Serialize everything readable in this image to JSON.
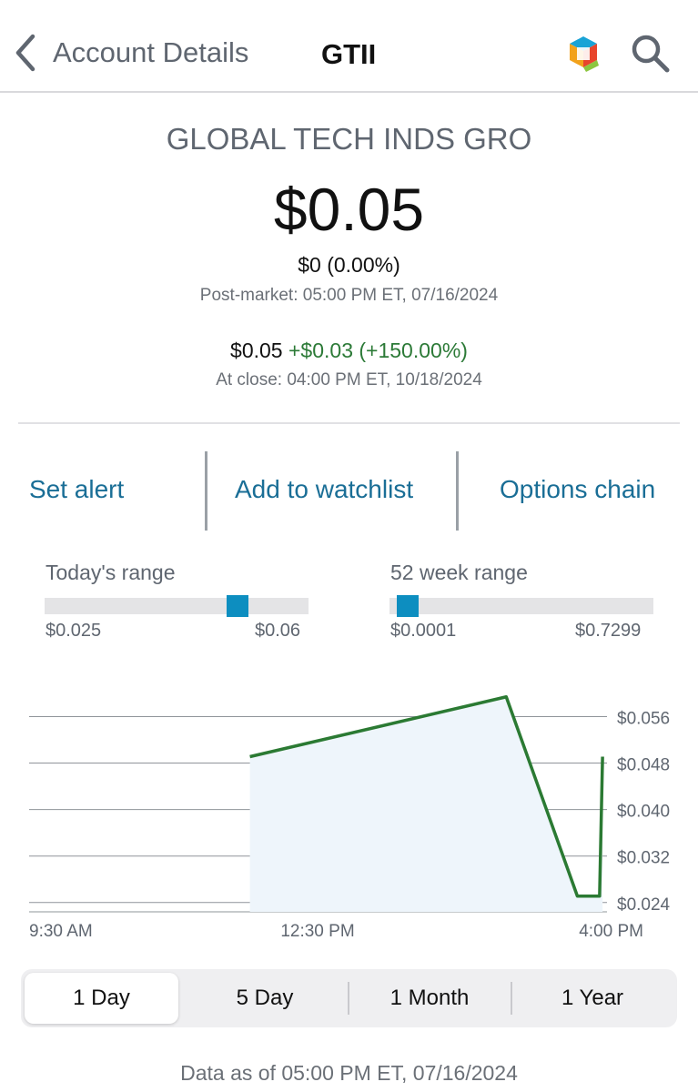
{
  "header": {
    "back_label": "Account Details",
    "ticker": "GTII"
  },
  "quote": {
    "company_name": "GLOBAL TECH INDS GRO",
    "price": "$0.05",
    "change": "$0 (0.00%)",
    "post_market_time": "Post-market: 05:00 PM ET, 07/16/2024",
    "close_price": "$0.05",
    "close_change": "+$0.03 (+150.00%)",
    "close_time": "At close: 04:00 PM ET, 10/18/2024",
    "gain_color": "#2c7a37"
  },
  "actions": {
    "set_alert": "Set alert",
    "add_watchlist": "Add to watchlist",
    "options_chain": "Options chain"
  },
  "ranges": {
    "today": {
      "title": "Today's range",
      "low": "$0.025",
      "high": "$0.06",
      "position": 0.73
    },
    "week52": {
      "title": "52 week range",
      "low": "$0.0001",
      "high": "$0.7299",
      "position": 0.07
    },
    "marker_color": "#0d8ec0"
  },
  "chart_data": {
    "type": "line",
    "x": [
      "11:59 AM",
      "2:52 PM",
      "3:40 PM",
      "3:55 PM",
      "3:57 PM"
    ],
    "values": [
      0.0491,
      0.0594,
      0.0251,
      0.0251,
      0.0491
    ],
    "xticks": [
      "9:30 AM",
      "12:30 PM",
      "4:00 PM"
    ],
    "yticks": [
      "$0.056",
      "$0.048",
      "$0.040",
      "$0.032",
      "$0.024"
    ],
    "ytick_values": [
      0.056,
      0.048,
      0.04,
      0.032,
      0.024
    ],
    "ylim": [
      0.0224,
      0.0603
    ],
    "grid": true,
    "line_color": "#2b7a33",
    "fill_color": "#eef5fb"
  },
  "timeframes": [
    "1 Day",
    "5 Day",
    "1 Month",
    "1 Year"
  ],
  "selected_timeframe": "1 Day",
  "footer": "Data as of 05:00 PM ET, 07/16/2024"
}
